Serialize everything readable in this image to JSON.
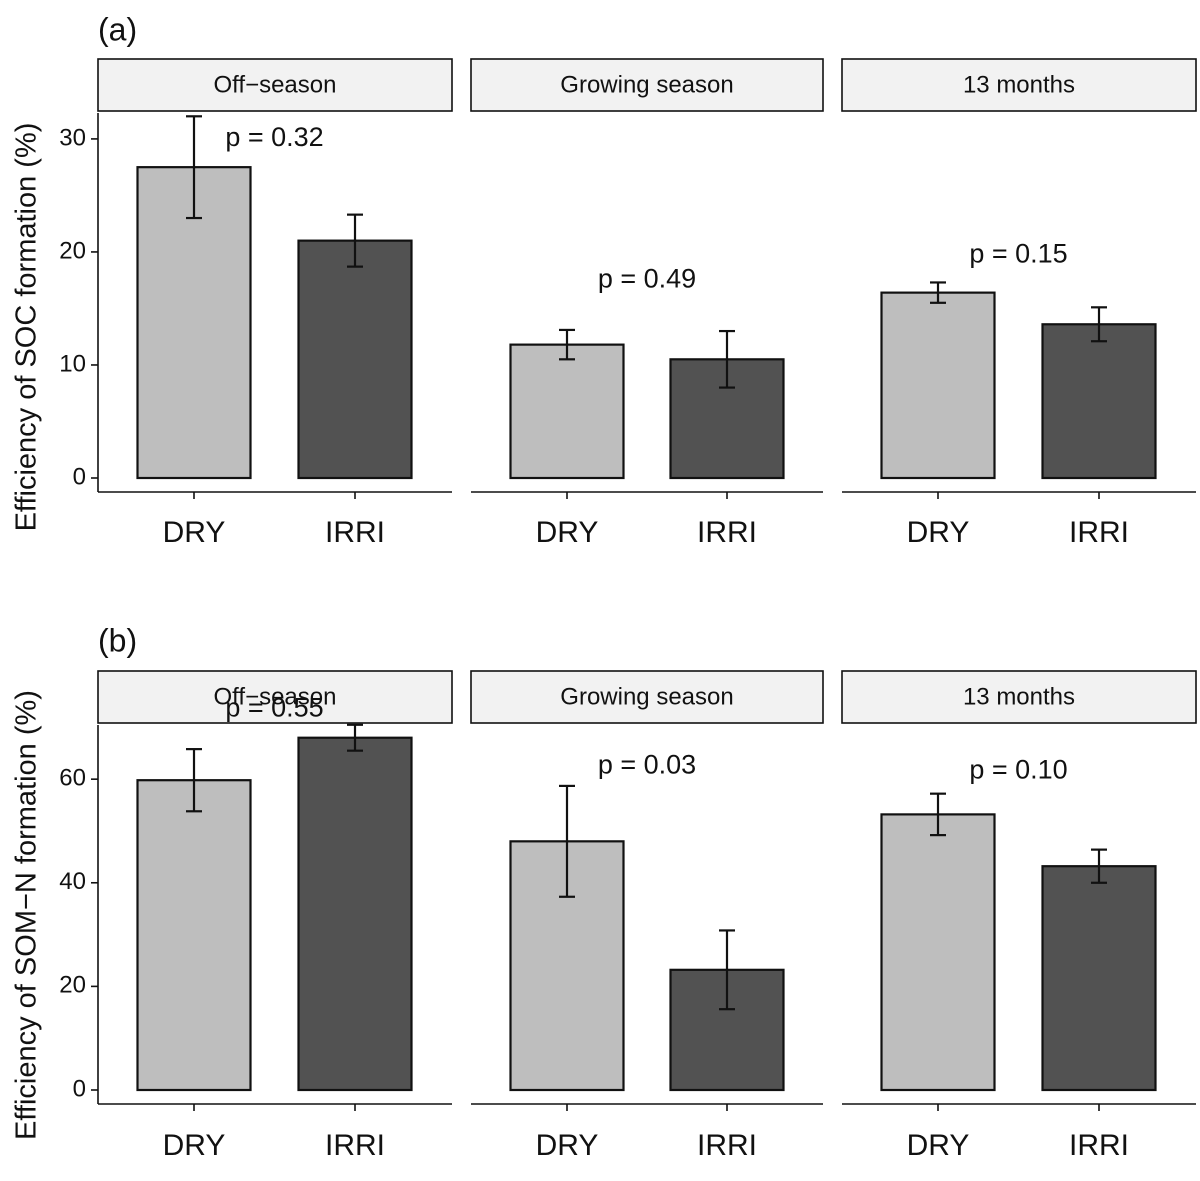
{
  "chart_data": [
    {
      "type": "bar",
      "panel_tag": "(a)",
      "ylabel": "Efficiency of SOC formation (%)",
      "ylim": [
        0,
        33
      ],
      "yticks": [
        0,
        10,
        20,
        30
      ],
      "categories": [
        "DRY",
        "IRRI"
      ],
      "bar_colors": {
        "DRY": "#bebebe",
        "IRRI": "#525252"
      },
      "facets": [
        {
          "label": "Off−season",
          "p_label": "p = 0.32",
          "values": [
            27.5,
            21.0
          ],
          "errors": [
            4.5,
            2.3
          ],
          "p_at": 30
        },
        {
          "label": "Growing season",
          "p_label": "p = 0.49",
          "values": [
            11.8,
            10.5
          ],
          "errors": [
            1.3,
            2.5
          ],
          "p_at": 17.5
        },
        {
          "label": "13 months",
          "p_label": "p = 0.15",
          "values": [
            16.4,
            13.6
          ],
          "errors": [
            0.9,
            1.5
          ],
          "p_at": 19.7
        }
      ]
    },
    {
      "type": "bar",
      "panel_tag": "(b)",
      "ylabel": "Efficiency of SOM−N formation (%)",
      "ylim": [
        0,
        72
      ],
      "yticks": [
        0,
        20,
        40,
        60
      ],
      "categories": [
        "DRY",
        "IRRI"
      ],
      "bar_colors": {
        "DRY": "#bebebe",
        "IRRI": "#525252"
      },
      "facets": [
        {
          "label": "Off−season",
          "p_label": "p = 0.55",
          "values": [
            59.8,
            68.0
          ],
          "errors": [
            6.0,
            2.5
          ],
          "p_at": 73.5
        },
        {
          "label": "Growing season",
          "p_label": "p = 0.03",
          "values": [
            48.0,
            23.2
          ],
          "errors": [
            10.7,
            7.6
          ],
          "p_at": 62.5
        },
        {
          "label": "13 months",
          "p_label": "p = 0.10",
          "values": [
            53.2,
            43.2
          ],
          "errors": [
            4.0,
            3.2
          ],
          "p_at": 61.5
        }
      ]
    }
  ]
}
